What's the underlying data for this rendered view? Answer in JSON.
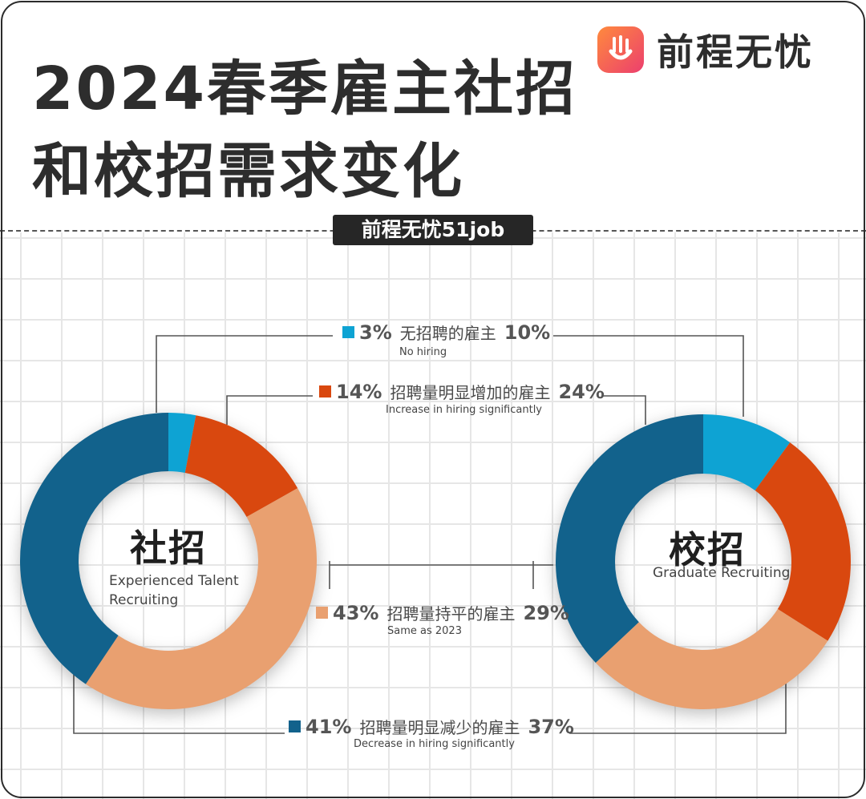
{
  "title": {
    "line1": "2024春季雇主社招",
    "line2": "和校招需求变化"
  },
  "brand": {
    "name": "前程无忧",
    "tag": "前程无忧51job"
  },
  "chart_data": [
    {
      "type": "pie",
      "name": "社招",
      "subtitle": "Experienced Talent Recruiting",
      "categories": [
        "无招聘的雇主",
        "招聘量明显增加的雇主",
        "招聘量持平的雇主",
        "招聘量明显减少的雇主"
      ],
      "values": [
        3,
        14,
        43,
        41
      ],
      "labels": [
        "3%",
        "14%",
        "43%",
        "41%"
      ]
    },
    {
      "type": "pie",
      "name": "校招",
      "subtitle": "Graduate Recruiting",
      "categories": [
        "无招聘的雇主",
        "招聘量明显增加的雇主",
        "招聘量持平的雇主",
        "招聘量明显减少的雇主"
      ],
      "values": [
        10,
        24,
        29,
        37
      ],
      "labels": [
        "10%",
        "24%",
        "29%",
        "37%"
      ]
    }
  ],
  "left_center": {
    "cn": "社招",
    "en1": "Experienced Talent",
    "en2": "Recruiting"
  },
  "right_center": {
    "cn": "校招",
    "en1": "Graduate Recruiting"
  },
  "legend": [
    {
      "cn": "无招聘的雇主",
      "en": "No hiring",
      "left": "3%",
      "right": "10%",
      "color": "#0ea3d3"
    },
    {
      "cn": "招聘量明显增加的雇主",
      "en": "Increase in hiring significantly",
      "left": "14%",
      "right": "24%",
      "color": "#d9480f"
    },
    {
      "cn": "招聘量持平的雇主",
      "en": "Same as 2023",
      "left": "43%",
      "right": "29%",
      "color": "#e9a070"
    },
    {
      "cn": "招聘量明显减少的雇主",
      "en": "Decrease in hiring significantly",
      "left": "41%",
      "right": "37%",
      "color": "#12628c"
    }
  ]
}
